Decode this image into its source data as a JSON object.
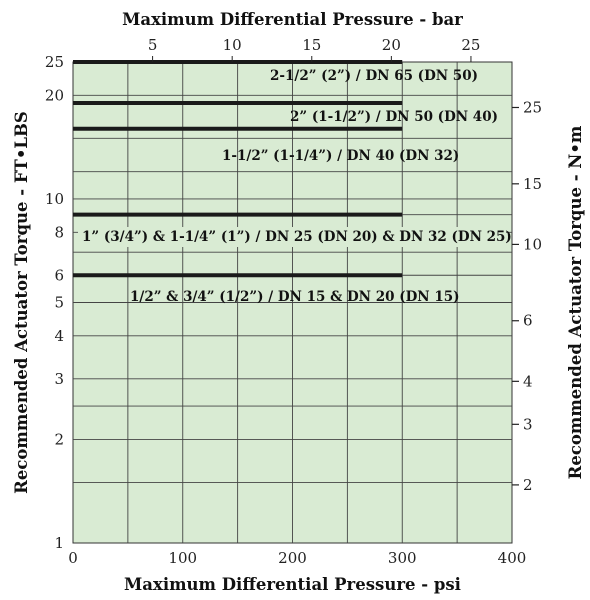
{
  "chart_data": {
    "type": "line",
    "title": "",
    "xlabel": "Maximum Differential Pressure - psi",
    "x2label": "Maximum Differential Pressure - bar",
    "ylabel": "Recommended Actuator Torque - FT•LBS",
    "y2label": "Recommended Actuator Torque - N•m",
    "xlim": [
      0,
      400
    ],
    "ylim": [
      1,
      25
    ],
    "y_scale": "log",
    "grid": true,
    "background_color": "#d9ebd3",
    "line_color": "#1a1a1a",
    "x_ticks": [
      "0",
      "100",
      "200",
      "300",
      "400"
    ],
    "x2_ticks": [
      "5",
      "10",
      "15",
      "20",
      "25"
    ],
    "y_ticks": [
      "1",
      "2",
      "3",
      "4",
      "5",
      "6",
      "8",
      "10",
      "20",
      "25"
    ],
    "y2_ticks": [
      "2",
      "3",
      "4",
      "6",
      "10",
      "15",
      "25"
    ],
    "series": [
      {
        "name": "2-1/2” (2”) / DN 65 (DN 50)",
        "x": [
          0,
          300
        ],
        "y": [
          25,
          25
        ]
      },
      {
        "name": "2” (1-1/2”) / DN 50 (DN 40)",
        "x": [
          0,
          300
        ],
        "y": [
          19,
          19
        ]
      },
      {
        "name": "1-1/2” (1-1/4”) / DN 40 (DN 32)",
        "x": [
          0,
          300
        ],
        "y": [
          16,
          16
        ]
      },
      {
        "name": "1” (3/4”) & 1-1/4” (1”) / DN 25 (DN 20) & DN 32 (DN 25)",
        "x": [
          0,
          300
        ],
        "y": [
          9,
          9
        ]
      },
      {
        "name": "1/2” & 3/4” (1/2”) / DN 15 & DN 20 (DN 15)",
        "x": [
          0,
          300
        ],
        "y": [
          6,
          6
        ]
      }
    ]
  }
}
